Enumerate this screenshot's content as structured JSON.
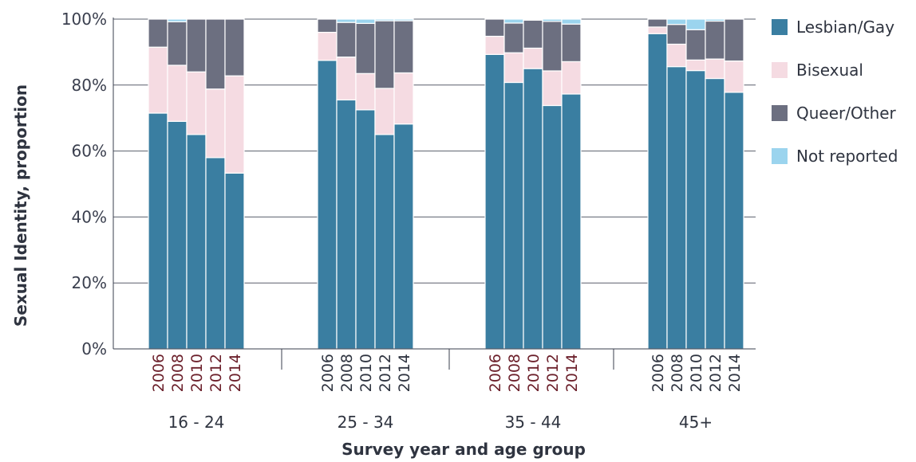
{
  "chart_data": {
    "type": "bar",
    "stacked": true,
    "ylabel": "Sexual Identity, proportion",
    "xlabel": "Survey year and age group",
    "ylim": [
      0,
      100
    ],
    "yticks": [
      "0%",
      "20%",
      "40%",
      "60%",
      "80%",
      "100%"
    ],
    "groups": [
      "16 - 24",
      "25 - 34",
      "35 - 44",
      "45+"
    ],
    "years": [
      "2006",
      "2008",
      "2010",
      "2012",
      "2014"
    ],
    "year_label_colors": {
      "16 - 24": "#6b1f2a",
      "25 - 34": "#2f3440",
      "35 - 44": "#6b1f2a",
      "45+": "#2f3440"
    },
    "legend_position": "right",
    "series": [
      {
        "name": "Lesbian/Gay",
        "color": "#3a7ea1",
        "values": [
          [
            71.5,
            69,
            65,
            58,
            53.3
          ],
          [
            87.5,
            75.5,
            72.5,
            65,
            68.2
          ],
          [
            89.3,
            80.8,
            85,
            73.8,
            77.3
          ],
          [
            95.6,
            85.6,
            84.4,
            82,
            77.8
          ]
        ]
      },
      {
        "name": "Bisexual",
        "color": "#f5dbe2",
        "values": [
          [
            20,
            17,
            19,
            20.8,
            29.5
          ],
          [
            8.5,
            13,
            11,
            14,
            15.5
          ],
          [
            5.5,
            9,
            6.2,
            10.5,
            9.8
          ],
          [
            2,
            6.8,
            3.2,
            5.9,
            9.5
          ]
        ]
      },
      {
        "name": "Queer/Other",
        "color": "#6c6f80",
        "values": [
          [
            8.5,
            13.2,
            16,
            21.2,
            17.2
          ],
          [
            4,
            10.5,
            15.2,
            20.5,
            15.8
          ],
          [
            5.2,
            9,
            8.5,
            15,
            11.4
          ],
          [
            2.4,
            6,
            9.2,
            11.5,
            12.7
          ]
        ]
      },
      {
        "name": "Not reported",
        "color": "#9bd4ee",
        "values": [
          [
            0,
            0.8,
            0,
            0,
            0
          ],
          [
            0,
            1,
            1.3,
            0.5,
            0.5
          ],
          [
            0,
            1.2,
            0.3,
            0.7,
            1.5
          ],
          [
            0,
            1.6,
            3.2,
            0.6,
            0
          ]
        ]
      }
    ]
  }
}
